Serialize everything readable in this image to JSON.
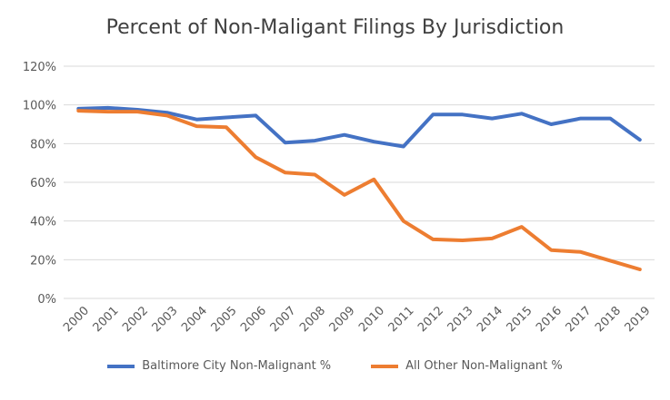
{
  "chart_data": {
    "type": "line",
    "title": "Percent of Non-Maligant Filings By Jurisdiction",
    "xlabel": "",
    "ylabel": "",
    "x": [
      "2000",
      "2001",
      "2002",
      "2003",
      "2004",
      "2005",
      "2006",
      "2007",
      "2008",
      "2009",
      "2010",
      "2011",
      "2012",
      "2013",
      "2014",
      "2015",
      "2016",
      "2017",
      "2018",
      "2019"
    ],
    "ylim": [
      0,
      120
    ],
    "yticks": [
      "0%",
      "20%",
      "40%",
      "60%",
      "80%",
      "100%",
      "120%"
    ],
    "grid": true,
    "legend": "bottom",
    "series": [
      {
        "name": "Baltimore City Non-Malignant %",
        "color": "#4472C4",
        "values": [
          98,
          98.5,
          97.5,
          96,
          92.5,
          93.5,
          94.5,
          80.5,
          81.5,
          84.5,
          81,
          78.5,
          95,
          95,
          93,
          95.5,
          90,
          93,
          93,
          82
        ]
      },
      {
        "name": "All Other Non-Malignant %",
        "color": "#ED7D31",
        "values": [
          97,
          96.5,
          96.5,
          94.5,
          89,
          88.5,
          73,
          65,
          64,
          53.5,
          61.5,
          40,
          30.5,
          30,
          31,
          37,
          25,
          24,
          19.5,
          15
        ]
      }
    ]
  }
}
